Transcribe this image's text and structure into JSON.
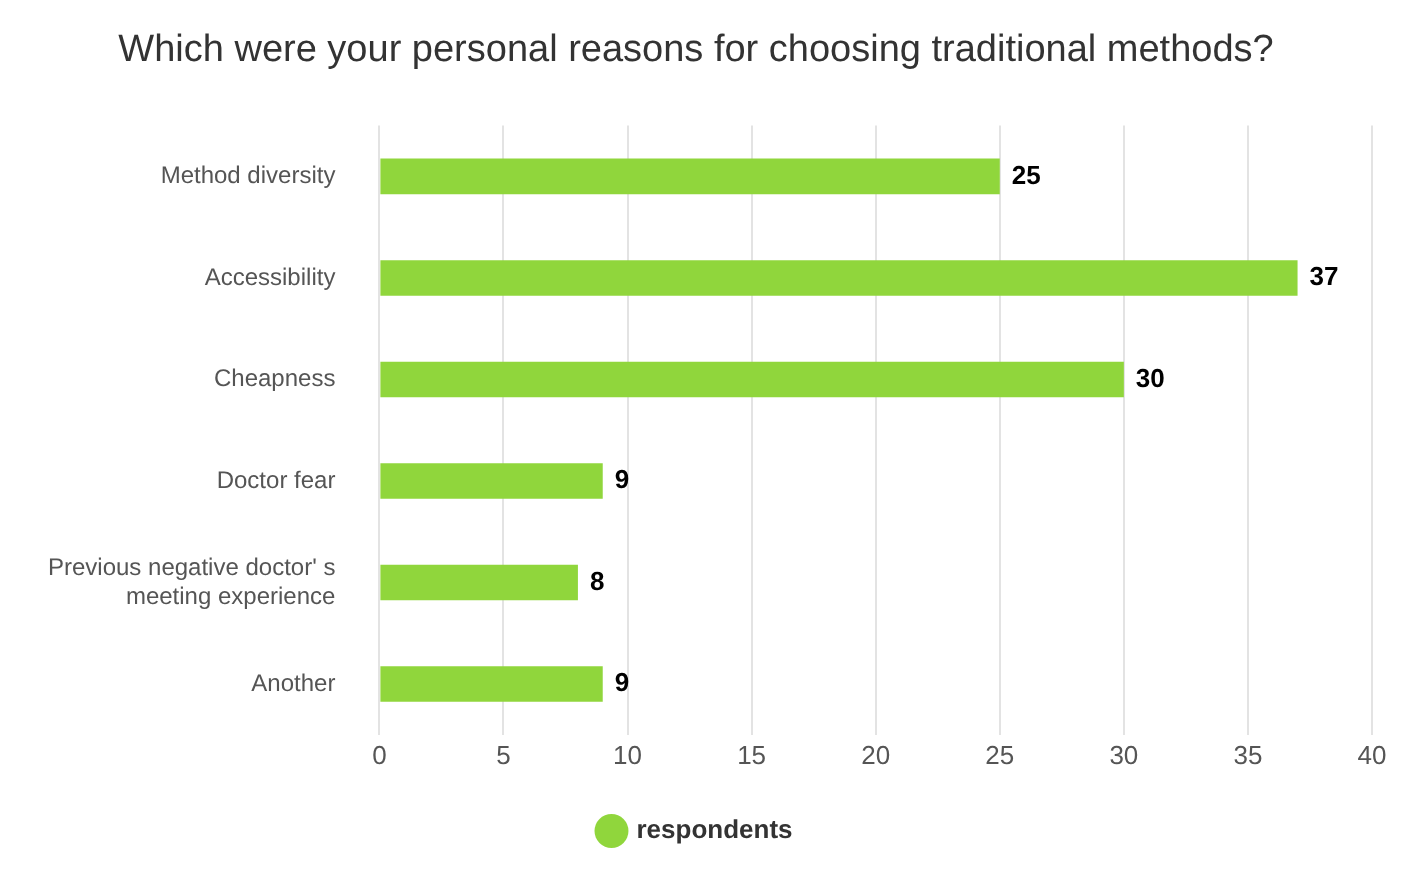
{
  "chart_data": {
    "type": "bar",
    "orientation": "horizontal",
    "title": "Which were your personal reasons for choosing traditional methods?",
    "categories": [
      "Method diversity",
      "Accessibility",
      "Cheapness",
      "Doctor fear",
      "Previous negative doctor' s meeting experience",
      "Another"
    ],
    "series": [
      {
        "name": "respondents",
        "color": "#90d63c",
        "values": [
          25,
          37,
          30,
          9,
          8,
          9
        ]
      }
    ],
    "xlim": [
      0,
      40
    ],
    "xticks": [
      0,
      5,
      10,
      15,
      20,
      25,
      30,
      35,
      40
    ],
    "grid": "x",
    "legend": "bottom",
    "data_labels": true
  }
}
